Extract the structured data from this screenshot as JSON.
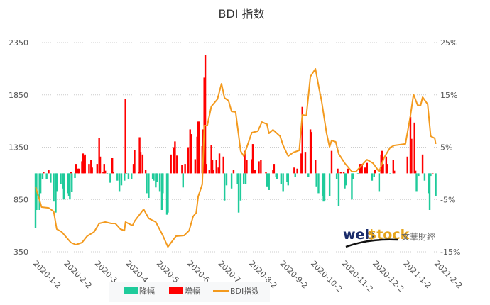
{
  "chart_data": {
    "type": "bar+line",
    "title": "BDI 指数",
    "left_axis": {
      "min": 350,
      "max": 2350,
      "ticks": [
        "2350",
        "1850",
        "1350",
        "850",
        "350"
      ]
    },
    "right_axis": {
      "min": -15,
      "max": 25,
      "ticks": [
        "25%",
        "15%",
        "5%",
        "-5%",
        "-15%"
      ]
    },
    "x_range": [
      "2020-01-02",
      "2021-02-02"
    ],
    "x_ticks": [
      "2020-1-2",
      "2020-2-2",
      "2020-3-2",
      "2020-4-2",
      "2020-5-2",
      "2020-6-2",
      "2020-7-2",
      "2020-8-2",
      "2020-9-2",
      "2020-10-2",
      "2020-11-2",
      "2020-12-2",
      "2021-1-2",
      "2021-2-2"
    ],
    "grid": true,
    "legend_position": "bottom",
    "legend": [
      {
        "name": "降幅",
        "type": "bar",
        "color": "#1fcb9b"
      },
      {
        "name": "增幅",
        "type": "bar",
        "color": "#ff0000"
      },
      {
        "name": "BDI指数",
        "type": "line",
        "color": "#f39a1e"
      }
    ],
    "bars_pct_change": [
      [
        "2020-01-02",
        -10.4
      ],
      [
        "2020-01-03",
        -7
      ],
      [
        "2020-01-06",
        -7
      ],
      [
        "2020-01-07",
        -3.8
      ],
      [
        "2020-01-09",
        -1.1
      ],
      [
        "2020-01-10",
        0.2
      ],
      [
        "2020-01-13",
        -1.1
      ],
      [
        "2020-01-15",
        0.7
      ],
      [
        "2020-01-17",
        -1.8
      ],
      [
        "2020-01-20",
        -5.4
      ],
      [
        "2020-01-22",
        -7.5
      ],
      [
        "2020-01-23",
        -3.4
      ],
      [
        "2020-01-27",
        -2
      ],
      [
        "2020-01-29",
        -2.9
      ],
      [
        "2020-01-30",
        -5
      ],
      [
        "2020-02-03",
        -3.8
      ],
      [
        "2020-02-04",
        -4.3
      ],
      [
        "2020-02-05",
        -5
      ],
      [
        "2020-02-06",
        0.2
      ],
      [
        "2020-02-07",
        -3.6
      ],
      [
        "2020-02-10",
        -0.9
      ],
      [
        "2020-02-11",
        1.8
      ],
      [
        "2020-02-13",
        0.9
      ],
      [
        "2020-02-14",
        0.9
      ],
      [
        "2020-02-17",
        2.3
      ],
      [
        "2020-02-18",
        3.8
      ],
      [
        "2020-02-19",
        3.4
      ],
      [
        "2020-02-20",
        3.6
      ],
      [
        "2020-02-24",
        1.8
      ],
      [
        "2020-02-26",
        2.5
      ],
      [
        "2020-02-27",
        1.1
      ],
      [
        "2020-03-03",
        1.8
      ],
      [
        "2020-03-05",
        6.8
      ],
      [
        "2020-03-06",
        3.2
      ],
      [
        "2020-03-09",
        0.2
      ],
      [
        "2020-03-10",
        1.8
      ],
      [
        "2020-03-11",
        0.5
      ],
      [
        "2020-03-13",
        -0.2
      ],
      [
        "2020-03-16",
        -1.8
      ],
      [
        "2020-03-18",
        2.9
      ],
      [
        "2020-03-19",
        0.2
      ],
      [
        "2020-03-23",
        -1.4
      ],
      [
        "2020-03-25",
        -3.4
      ],
      [
        "2020-03-27",
        -2.3
      ],
      [
        "2020-03-30",
        -1.4
      ],
      [
        "2020-03-31",
        14.2
      ],
      [
        "2020-04-01",
        -0.2
      ],
      [
        "2020-04-03",
        -1.1
      ],
      [
        "2020-04-06",
        -1.1
      ],
      [
        "2020-04-08",
        1.8
      ],
      [
        "2020-04-09",
        4.5
      ],
      [
        "2020-04-13",
        0.2
      ],
      [
        "2020-04-14",
        6.9
      ],
      [
        "2020-04-15",
        4.1
      ],
      [
        "2020-04-17",
        3.6
      ],
      [
        "2020-04-20",
        0.7
      ],
      [
        "2020-04-21",
        -3.8
      ],
      [
        "2020-04-23",
        -4.7
      ],
      [
        "2020-04-27",
        -1.1
      ],
      [
        "2020-04-28",
        -1.4
      ],
      [
        "2020-04-30",
        -2.7
      ],
      [
        "2020-05-01",
        -1.6
      ],
      [
        "2020-05-04",
        -3.4
      ],
      [
        "2020-05-06",
        -7
      ],
      [
        "2020-05-07",
        -3.8
      ],
      [
        "2020-05-11",
        -7.9
      ],
      [
        "2020-05-12",
        -7.5
      ],
      [
        "2020-05-15",
        3.6
      ],
      [
        "2020-05-18",
        5
      ],
      [
        "2020-05-19",
        6.1
      ],
      [
        "2020-05-21",
        3.4
      ],
      [
        "2020-05-26",
        1.6
      ],
      [
        "2020-05-27",
        -2.7
      ],
      [
        "2020-05-29",
        1.8
      ],
      [
        "2020-06-01",
        5
      ],
      [
        "2020-06-03",
        8.4
      ],
      [
        "2020-06-04",
        7.5
      ],
      [
        "2020-06-08",
        2.7
      ],
      [
        "2020-06-10",
        7
      ],
      [
        "2020-06-11",
        9.9
      ],
      [
        "2020-06-12",
        9.9
      ],
      [
        "2020-06-15",
        5.2
      ],
      [
        "2020-06-16",
        8.4
      ],
      [
        "2020-06-17",
        18.3
      ],
      [
        "2020-06-18",
        22.6
      ],
      [
        "2020-06-19",
        1.8
      ],
      [
        "2020-06-22",
        0.7
      ],
      [
        "2020-06-24",
        5.4
      ],
      [
        "2020-06-25",
        2.5
      ],
      [
        "2020-06-26",
        0.7
      ],
      [
        "2020-06-29",
        2.5
      ],
      [
        "2020-07-01",
        1.1
      ],
      [
        "2020-07-02",
        3.8
      ],
      [
        "2020-07-06",
        3.2
      ],
      [
        "2020-07-07",
        -5.2
      ],
      [
        "2020-07-09",
        -2.3
      ],
      [
        "2020-07-14",
        -2.9
      ],
      [
        "2020-07-16",
        0.7
      ],
      [
        "2020-07-20",
        -2
      ],
      [
        "2020-07-21",
        -7.5
      ],
      [
        "2020-07-23",
        -5.2
      ],
      [
        "2020-07-26",
        -2
      ],
      [
        "2020-07-27",
        4.3
      ],
      [
        "2020-07-28",
        -2
      ],
      [
        "2020-07-29",
        2.5
      ],
      [
        "2020-08-03",
        2.7
      ],
      [
        "2020-08-04",
        5.6
      ],
      [
        "2020-08-06",
        0.7
      ],
      [
        "2020-08-10",
        2.3
      ],
      [
        "2020-08-12",
        2.5
      ],
      [
        "2020-08-17",
        0.2
      ],
      [
        "2020-08-18",
        -2.5
      ],
      [
        "2020-08-20",
        -3.2
      ],
      [
        "2020-08-24",
        0.7
      ],
      [
        "2020-08-25",
        1.8
      ],
      [
        "2020-08-27",
        -0.7
      ],
      [
        "2020-08-28",
        -1.1
      ],
      [
        "2020-09-01",
        -2
      ],
      [
        "2020-09-03",
        -3.4
      ],
      [
        "2020-09-07",
        -1.6
      ],
      [
        "2020-09-08",
        -2.3
      ],
      [
        "2020-09-14",
        1.1
      ],
      [
        "2020-09-15",
        -0.7
      ],
      [
        "2020-09-17",
        0.9
      ],
      [
        "2020-09-21",
        3.8
      ],
      [
        "2020-09-22",
        12.7
      ],
      [
        "2020-09-25",
        4.1
      ],
      [
        "2020-09-28",
        -0.7
      ],
      [
        "2020-09-30",
        8.4
      ],
      [
        "2020-10-01",
        7.9
      ],
      [
        "2020-10-05",
        2.5
      ],
      [
        "2020-10-06",
        -2.5
      ],
      [
        "2020-10-08",
        -3.8
      ],
      [
        "2020-10-12",
        -4.3
      ],
      [
        "2020-10-13",
        -5.4
      ],
      [
        "2020-10-14",
        -5.2
      ],
      [
        "2020-10-19",
        -4.3
      ],
      [
        "2020-10-21",
        4.3
      ],
      [
        "2020-10-26",
        -1.1
      ],
      [
        "2020-10-27",
        0.9
      ],
      [
        "2020-10-28",
        -6.3
      ],
      [
        "2020-10-30",
        0.2
      ],
      [
        "2020-11-02",
        0.2
      ],
      [
        "2020-11-03",
        -2.9
      ],
      [
        "2020-11-04",
        -2.3
      ],
      [
        "2020-11-06",
        0.9
      ],
      [
        "2020-11-10",
        -5
      ],
      [
        "2020-11-11",
        -1.1
      ],
      [
        "2020-11-16",
        -0.2
      ],
      [
        "2020-11-18",
        1.8
      ],
      [
        "2020-11-20",
        1.8
      ],
      [
        "2020-11-23",
        1.1
      ],
      [
        "2020-11-25",
        2
      ],
      [
        "2020-11-30",
        -1.4
      ],
      [
        "2020-12-02",
        -0.7
      ],
      [
        "2020-12-03",
        0.7
      ],
      [
        "2020-12-07",
        -3.4
      ],
      [
        "2020-12-09",
        3.6
      ],
      [
        "2020-12-10",
        4.3
      ],
      [
        "2020-12-11",
        1.8
      ],
      [
        "2020-12-14",
        3.2
      ],
      [
        "2020-12-15",
        1.8
      ],
      [
        "2020-12-18",
        -0.2
      ],
      [
        "2020-12-21",
        2.5
      ],
      [
        "2020-12-22",
        0.5
      ],
      [
        "2021-01-04",
        3.2
      ],
      [
        "2021-01-07",
        10.8
      ],
      [
        "2021-01-08",
        6.6
      ],
      [
        "2021-01-11",
        9.7
      ],
      [
        "2021-01-12",
        0.5
      ],
      [
        "2021-01-13",
        -3.4
      ],
      [
        "2021-01-15",
        -0.5
      ],
      [
        "2021-01-19",
        3.6
      ],
      [
        "2021-01-21",
        -1.4
      ],
      [
        "2021-01-25",
        -3.8
      ],
      [
        "2021-01-26",
        -7
      ],
      [
        "2021-01-27",
        -0.5
      ],
      [
        "2021-01-29",
        0
      ],
      [
        "2021-02-01",
        -4.3
      ]
    ],
    "line_bdi": [
      [
        "2020-01-02",
        974
      ],
      [
        "2020-01-08",
        777
      ],
      [
        "2020-01-15",
        770
      ],
      [
        "2020-01-20",
        736
      ],
      [
        "2020-01-23",
        567
      ],
      [
        "2020-01-28",
        540
      ],
      [
        "2020-02-06",
        438
      ],
      [
        "2020-02-11",
        418
      ],
      [
        "2020-02-17",
        438
      ],
      [
        "2020-02-22",
        499
      ],
      [
        "2020-02-29",
        540
      ],
      [
        "2020-03-05",
        621
      ],
      [
        "2020-03-11",
        635
      ],
      [
        "2020-03-17",
        621
      ],
      [
        "2020-03-21",
        621
      ],
      [
        "2020-03-26",
        567
      ],
      [
        "2020-03-30",
        553
      ],
      [
        "2020-03-31",
        635
      ],
      [
        "2020-04-07",
        601
      ],
      [
        "2020-04-09",
        642
      ],
      [
        "2020-04-18",
        757
      ],
      [
        "2020-04-23",
        669
      ],
      [
        "2020-04-30",
        635
      ],
      [
        "2020-05-07",
        506
      ],
      [
        "2020-05-12",
        397
      ],
      [
        "2020-05-20",
        499
      ],
      [
        "2020-05-28",
        506
      ],
      [
        "2020-06-02",
        553
      ],
      [
        "2020-06-06",
        689
      ],
      [
        "2020-06-09",
        723
      ],
      [
        "2020-06-11",
        879
      ],
      [
        "2020-06-15",
        994
      ],
      [
        "2020-06-17",
        1557
      ],
      [
        "2020-06-20",
        1557
      ],
      [
        "2020-06-24",
        1740
      ],
      [
        "2020-06-30",
        1808
      ],
      [
        "2020-07-04",
        1957
      ],
      [
        "2020-07-07",
        1821
      ],
      [
        "2020-07-11",
        1794
      ],
      [
        "2020-07-14",
        1692
      ],
      [
        "2020-07-18",
        1686
      ],
      [
        "2020-07-23",
        1313
      ],
      [
        "2020-07-26",
        1265
      ],
      [
        "2020-08-03",
        1489
      ],
      [
        "2020-08-09",
        1503
      ],
      [
        "2020-08-13",
        1591
      ],
      [
        "2020-08-18",
        1570
      ],
      [
        "2020-08-20",
        1482
      ],
      [
        "2020-08-24",
        1516
      ],
      [
        "2020-08-31",
        1455
      ],
      [
        "2020-09-03",
        1367
      ],
      [
        "2020-09-08",
        1265
      ],
      [
        "2020-09-13",
        1299
      ],
      [
        "2020-09-19",
        1320
      ],
      [
        "2020-09-22",
        1659
      ],
      [
        "2020-09-26",
        1652
      ],
      [
        "2020-09-30",
        2025
      ],
      [
        "2020-10-05",
        2099
      ],
      [
        "2020-10-09",
        1889
      ],
      [
        "2020-10-11",
        1794
      ],
      [
        "2020-10-16",
        1482
      ],
      [
        "2020-10-19",
        1353
      ],
      [
        "2020-10-21",
        1415
      ],
      [
        "2020-10-25",
        1401
      ],
      [
        "2020-10-28",
        1286
      ],
      [
        "2020-11-03",
        1197
      ],
      [
        "2020-11-10",
        1116
      ],
      [
        "2020-11-14",
        1116
      ],
      [
        "2020-11-25",
        1231
      ],
      [
        "2020-12-01",
        1197
      ],
      [
        "2020-12-07",
        1116
      ],
      [
        "2020-12-12",
        1252
      ],
      [
        "2020-12-18",
        1347
      ],
      [
        "2020-12-22",
        1367
      ],
      [
        "2021-01-02",
        1381
      ],
      [
        "2021-01-07",
        1652
      ],
      [
        "2021-01-10",
        1855
      ],
      [
        "2021-01-14",
        1753
      ],
      [
        "2021-01-17",
        1747
      ],
      [
        "2021-01-19",
        1828
      ],
      [
        "2021-01-24",
        1760
      ],
      [
        "2021-01-27",
        1455
      ],
      [
        "2021-01-31",
        1435
      ],
      [
        "2021-02-01",
        1381
      ]
    ]
  },
  "watermark": {
    "brand_left": "web",
    "brand_right": "$tock",
    "chinese": "文華財經"
  }
}
